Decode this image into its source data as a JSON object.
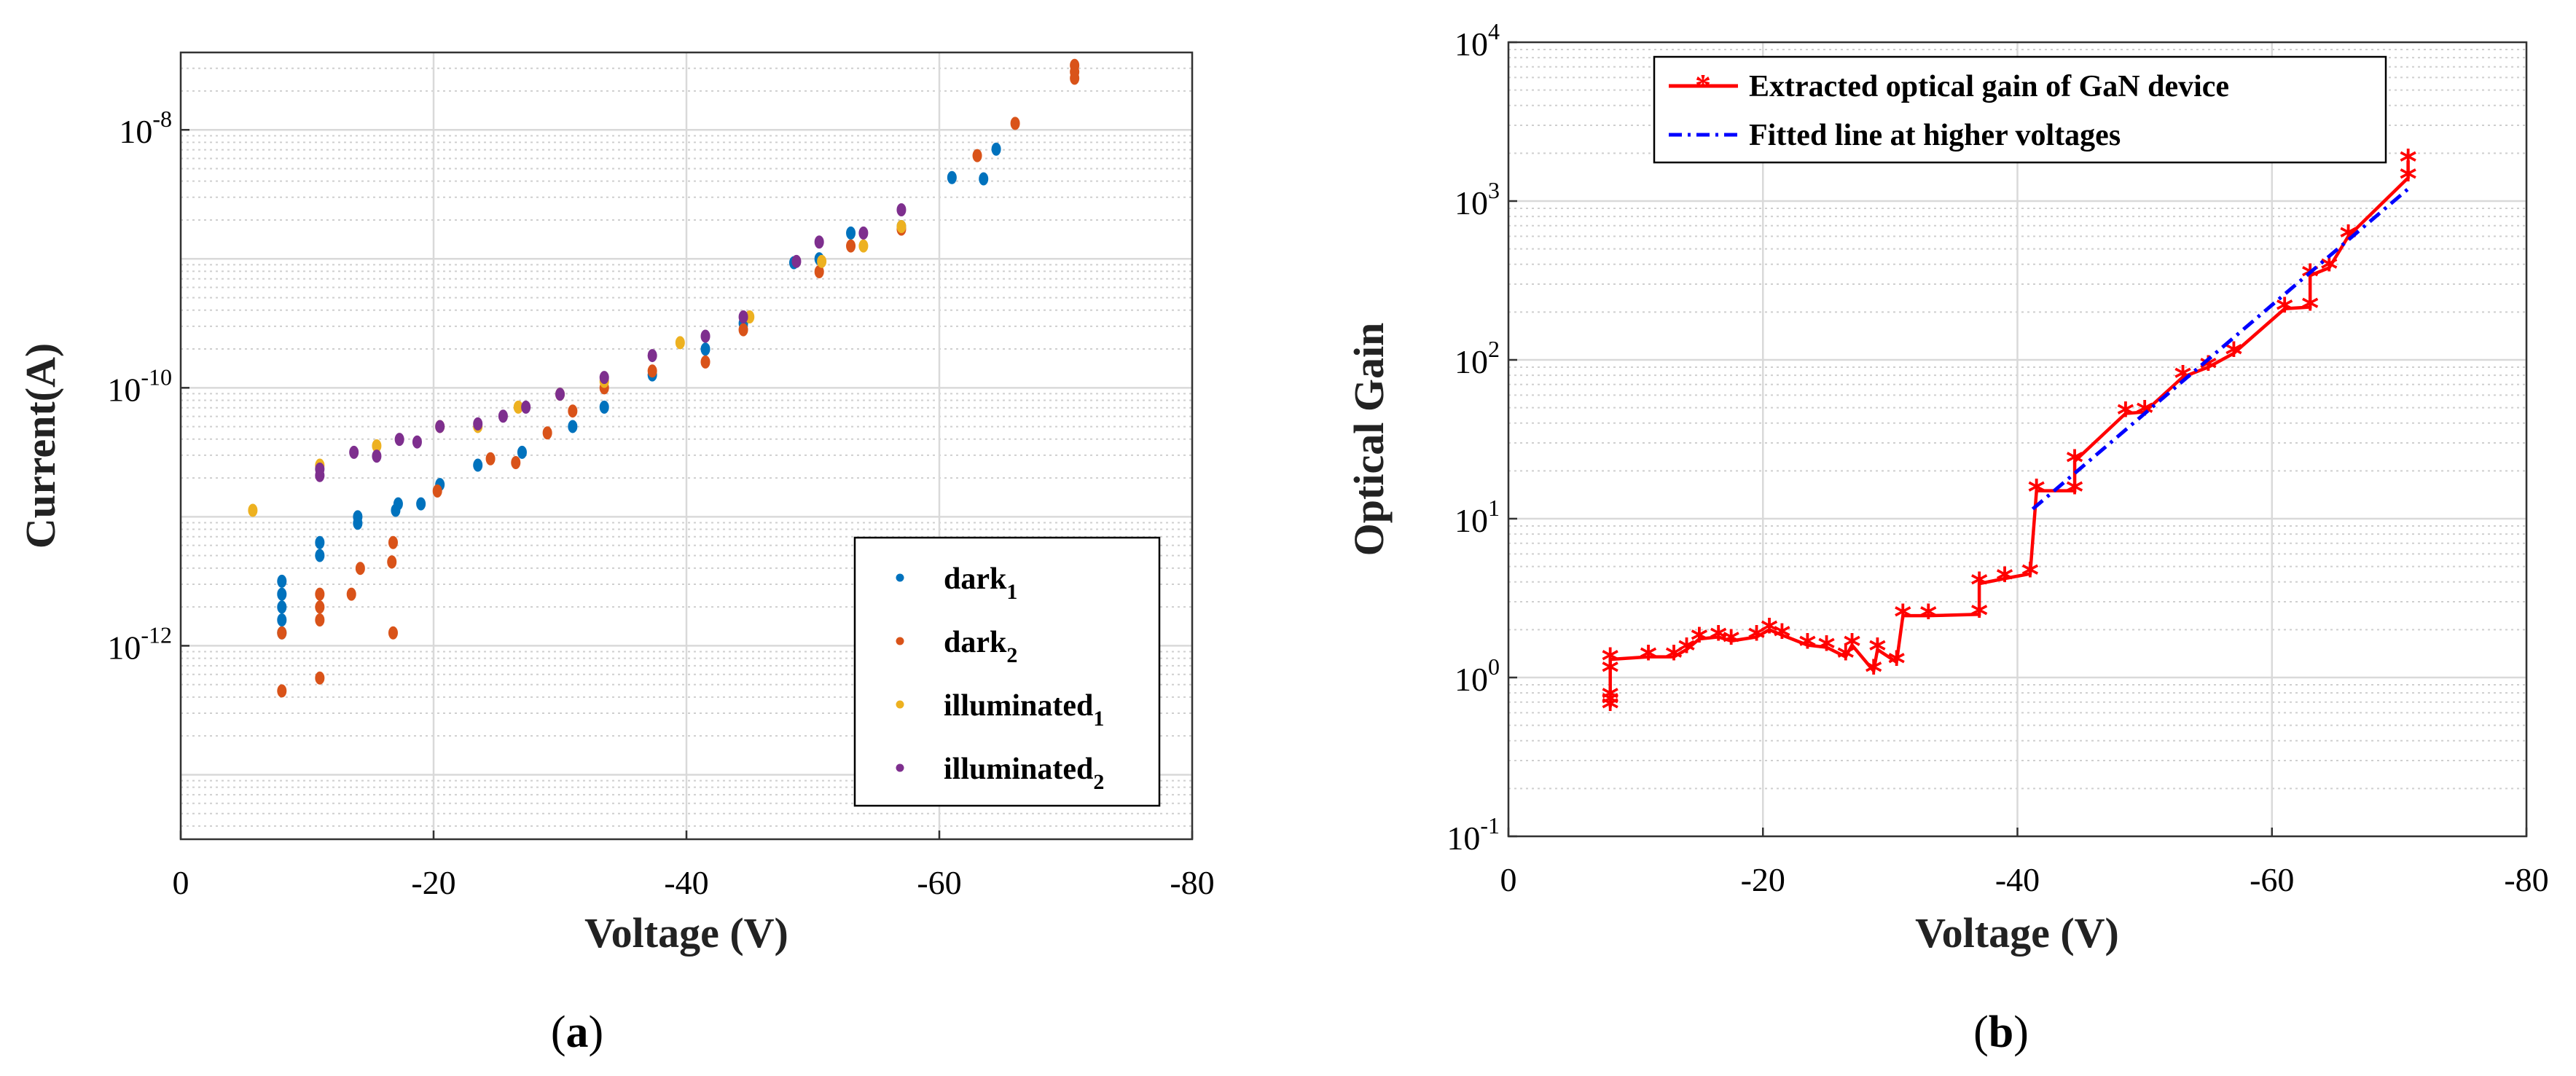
{
  "panels": [
    {
      "caption": "(a)",
      "chart_data": {
        "type": "scatter",
        "title": "",
        "xlabel": "Voltage (V)",
        "ylabel": "Current(A)",
        "xlim": [
          0,
          -80
        ],
        "ylim_log10": [
          -13.5,
          -7.4
        ],
        "y_scale": "log",
        "grid": true,
        "legend_position": "bottom-right",
        "x_ticks": [
          0,
          -20,
          -40,
          -60,
          -80
        ],
        "x_tick_labels": [
          "0",
          "-20",
          "-40",
          "-60",
          "-80"
        ],
        "y_ticks_log10": [
          -12,
          -10,
          -8
        ],
        "series": [
          {
            "name": "dark",
            "name_sub": "1",
            "color": "#0072BD",
            "points": [
              [
                -8,
                -11.6
              ],
              [
                -8,
                -11.7
              ],
              [
                -8,
                -11.8
              ],
              [
                -8,
                -11.9
              ],
              [
                -8,
                -11.5
              ],
              [
                -11,
                -11.3
              ],
              [
                -11,
                -11.2
              ],
              [
                -14,
                -11.05
              ],
              [
                -14,
                -11.0
              ],
              [
                -17,
                -10.95
              ],
              [
                -17.2,
                -10.9
              ],
              [
                -19,
                -10.9
              ],
              [
                -20.5,
                -10.75
              ],
              [
                -23.5,
                -10.6
              ],
              [
                -27,
                -10.5
              ],
              [
                -31,
                -10.3
              ],
              [
                -33.5,
                -10.15
              ],
              [
                -37.3,
                -9.9
              ],
              [
                -41.5,
                -9.7
              ],
              [
                -44.5,
                -9.5
              ],
              [
                -48.5,
                -9.03
              ],
              [
                -50.5,
                -9.0
              ],
              [
                -53,
                -8.8
              ],
              [
                -57,
                -8.75
              ],
              [
                -61,
                -8.37
              ],
              [
                -63.5,
                -8.38
              ],
              [
                -64.5,
                -8.15
              ]
            ]
          },
          {
            "name": "dark",
            "name_sub": "2",
            "color": "#D95319",
            "points": [
              [
                -8,
                -12.35
              ],
              [
                -8,
                -11.9
              ],
              [
                -11,
                -12.25
              ],
              [
                -11,
                -11.8
              ],
              [
                -11,
                -11.6
              ],
              [
                -11,
                -11.7
              ],
              [
                -13.5,
                -11.6
              ],
              [
                -14.2,
                -11.4
              ],
              [
                -16.7,
                -11.35
              ],
              [
                -16.8,
                -11.2
              ],
              [
                -16.8,
                -11.9
              ],
              [
                -20.3,
                -10.8
              ],
              [
                -24.5,
                -10.55
              ],
              [
                -26.5,
                -10.58
              ],
              [
                -29,
                -10.35
              ],
              [
                -31,
                -10.18
              ],
              [
                -33.5,
                -10.0
              ],
              [
                -37.3,
                -9.87
              ],
              [
                -41.5,
                -9.8
              ],
              [
                -44.5,
                -9.55
              ],
              [
                -50.5,
                -9.1
              ],
              [
                -53,
                -8.9
              ],
              [
                -57,
                -8.77
              ],
              [
                -63,
                -8.2
              ],
              [
                -66,
                -7.95
              ],
              [
                -70.7,
                -7.6
              ],
              [
                -70.7,
                -7.5
              ],
              [
                -70.7,
                -7.55
              ]
            ]
          },
          {
            "name": "illuminated",
            "name_sub": "1",
            "color": "#EDB120",
            "points": [
              [
                -5.7,
                -10.95
              ],
              [
                -11,
                -10.6
              ],
              [
                -15.5,
                -10.45
              ],
              [
                -20.5,
                -10.3
              ],
              [
                -23.5,
                -10.3
              ],
              [
                -26.7,
                -10.15
              ],
              [
                -30,
                -10.05
              ],
              [
                -33.5,
                -9.95
              ],
              [
                -39.5,
                -9.65
              ],
              [
                -45,
                -9.45
              ],
              [
                -50.7,
                -9.02
              ],
              [
                -54,
                -8.9
              ],
              [
                -57,
                -8.75
              ]
            ]
          },
          {
            "name": "illuminated",
            "name_sub": "2",
            "color": "#7E2F8E",
            "points": [
              [
                -11,
                -10.63
              ],
              [
                -11,
                -10.68
              ],
              [
                -13.7,
                -10.5
              ],
              [
                -15.5,
                -10.53
              ],
              [
                -17.3,
                -10.4
              ],
              [
                -18.7,
                -10.42
              ],
              [
                -20.5,
                -10.3
              ],
              [
                -23.5,
                -10.28
              ],
              [
                -25.5,
                -10.22
              ],
              [
                -27.3,
                -10.15
              ],
              [
                -30,
                -10.05
              ],
              [
                -33.5,
                -9.92
              ],
              [
                -37.3,
                -9.75
              ],
              [
                -41.5,
                -9.6
              ],
              [
                -44.5,
                -9.45
              ],
              [
                -48.7,
                -9.02
              ],
              [
                -50.5,
                -8.87
              ],
              [
                -54,
                -8.8
              ],
              [
                -57,
                -8.62
              ]
            ]
          }
        ]
      }
    },
    {
      "caption": "(b)",
      "chart_data": {
        "type": "line",
        "title": "",
        "xlabel": "Voltage (V)",
        "ylabel": "Optical Gain",
        "xlim": [
          0,
          -80
        ],
        "ylim_log10": [
          -1,
          4
        ],
        "y_scale": "log",
        "grid": true,
        "legend_position": "top-left",
        "x_ticks": [
          0,
          -20,
          -40,
          -60,
          -80
        ],
        "x_tick_labels": [
          "0",
          "-20",
          "-40",
          "-60",
          "-80"
        ],
        "y_ticks_log10": [
          -1,
          0,
          1,
          2,
          3,
          4
        ],
        "series": [
          {
            "name": "Extracted optical gain of GaN device",
            "color": "#FF0000",
            "style": "solid-star",
            "points": [
              [
                -8,
                0.65
              ],
              [
                -8,
                0.7
              ],
              [
                -8,
                0.75
              ],
              [
                -8,
                1.1
              ],
              [
                -8,
                1.3
              ],
              [
                -11,
                1.35
              ],
              [
                -13,
                1.35
              ],
              [
                -14,
                1.5
              ],
              [
                -15,
                1.75
              ],
              [
                -16.5,
                1.8
              ],
              [
                -17.5,
                1.7
              ],
              [
                -19.5,
                1.8
              ],
              [
                -20.5,
                2.0
              ],
              [
                -21.5,
                1.85
              ],
              [
                -23.5,
                1.6
              ],
              [
                -25,
                1.55
              ],
              [
                -26.5,
                1.35
              ],
              [
                -27,
                1.6
              ],
              [
                -28.7,
                1.1
              ],
              [
                -29,
                1.5
              ],
              [
                -30.5,
                1.25
              ],
              [
                -31,
                2.45
              ],
              [
                -33,
                2.45
              ],
              [
                -37,
                2.5
              ],
              [
                -37,
                3.9
              ],
              [
                -39,
                4.2
              ],
              [
                -41,
                4.5
              ],
              [
                -41.5,
                15
              ],
              [
                -44.5,
                15
              ],
              [
                -44.5,
                23
              ],
              [
                -48.5,
                46
              ],
              [
                -50,
                47
              ],
              [
                -53,
                78
              ],
              [
                -55,
                90
              ],
              [
                -57,
                110
              ],
              [
                -61,
                210
              ],
              [
                -63,
                215
              ],
              [
                -63,
                340
              ],
              [
                -64.5,
                380
              ],
              [
                -66,
                600
              ],
              [
                -70.7,
                1400
              ],
              [
                -70.7,
                1800
              ]
            ]
          },
          {
            "name": "Fitted line at higher voltages",
            "color": "#0000FF",
            "style": "dash-dot",
            "points": [
              [
                -41.2,
                11.5
              ],
              [
                -71,
                1250
              ]
            ]
          }
        ]
      }
    }
  ]
}
